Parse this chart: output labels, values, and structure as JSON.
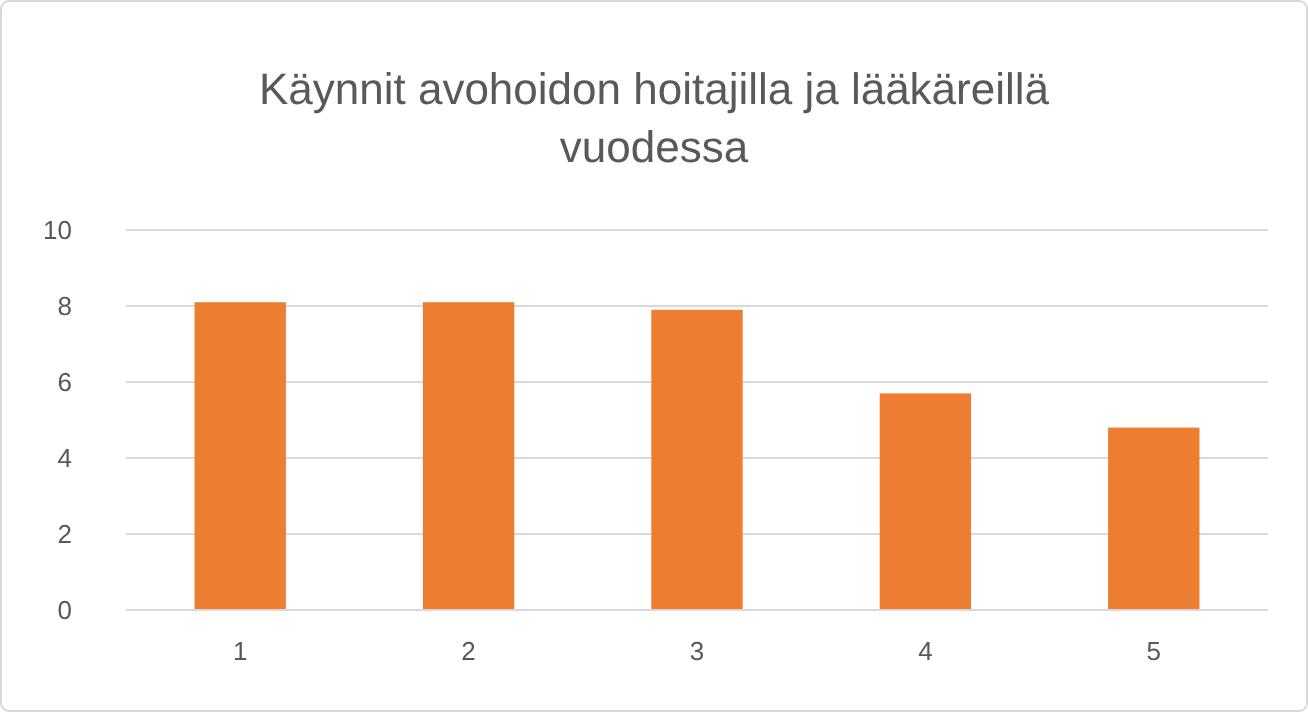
{
  "chart_data": {
    "type": "bar",
    "title": "Käynnit avohoidon hoitajilla ja lääkäreillä vuodessa",
    "categories": [
      "1",
      "2",
      "3",
      "4",
      "5"
    ],
    "values": [
      8.1,
      8.1,
      7.9,
      5.7,
      4.8
    ],
    "color": "#ed7d31",
    "ylim": [
      0,
      10
    ],
    "yticks": [
      0,
      2,
      4,
      6,
      8,
      10
    ],
    "grid": "y"
  }
}
